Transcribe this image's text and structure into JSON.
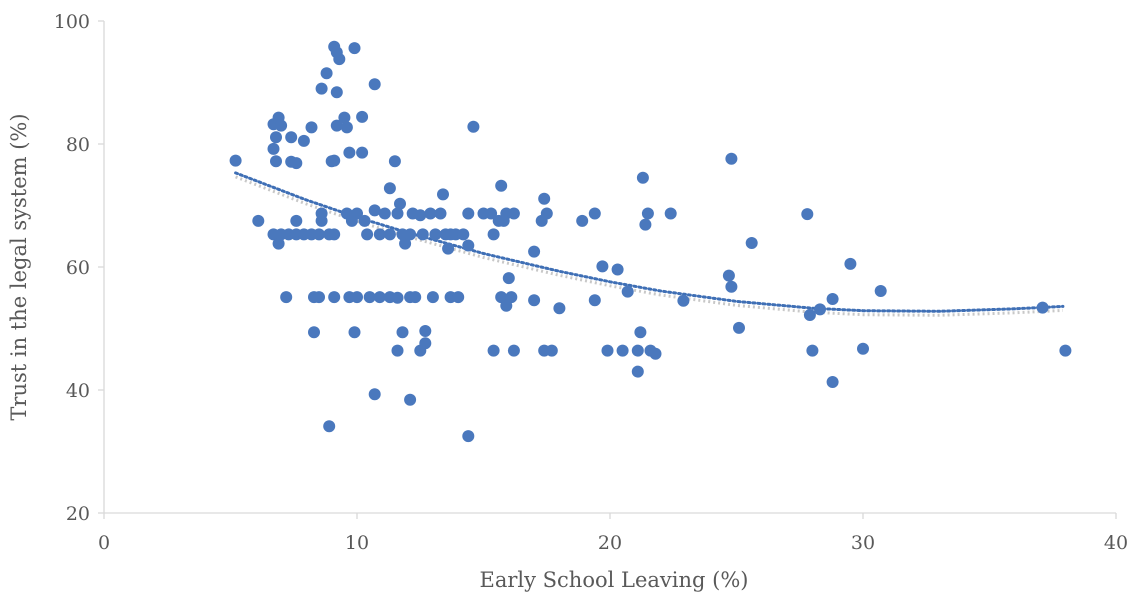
{
  "chart_data": {
    "type": "scatter",
    "title": "",
    "xlabel": "Early School Leaving (%)",
    "ylabel": "Trust in the legal system (%)",
    "xlim": [
      0,
      40
    ],
    "ylim": [
      20,
      100
    ],
    "x_ticks": [
      "0",
      "10",
      "20",
      "30",
      "40"
    ],
    "y_ticks": [
      "20",
      "40",
      "60",
      "80",
      "100"
    ],
    "grid": false,
    "legend": "none",
    "colors": {
      "points": "#4a78bd",
      "trend": "#3f6fb5",
      "trend_shadow": "#c8c8c8",
      "axis": "#d9d9d9",
      "text": "#595959"
    },
    "trendline": {
      "type": "polynomial",
      "x": [
        5.2,
        8,
        10,
        12,
        15,
        18,
        20,
        22,
        25,
        28,
        30,
        33,
        36,
        37.9
      ],
      "y": [
        75.3,
        70.9,
        68.1,
        65.6,
        62.2,
        59.3,
        57.6,
        56.1,
        54.4,
        53.3,
        52.9,
        52.8,
        53.2,
        53.6
      ]
    },
    "points": [
      [
        5.2,
        77.3
      ],
      [
        6.1,
        67.5
      ],
      [
        6.7,
        83.2
      ],
      [
        6.8,
        81.1
      ],
      [
        6.9,
        84.3
      ],
      [
        7.0,
        83.0
      ],
      [
        6.7,
        79.2
      ],
      [
        6.8,
        77.2
      ],
      [
        7.4,
        81.1
      ],
      [
        7.4,
        77.1
      ],
      [
        7.6,
        76.9
      ],
      [
        7.9,
        80.5
      ],
      [
        8.2,
        82.7
      ],
      [
        7.6,
        67.5
      ],
      [
        6.7,
        65.3
      ],
      [
        6.9,
        63.8
      ],
      [
        7.0,
        65.3
      ],
      [
        7.3,
        65.3
      ],
      [
        7.6,
        65.3
      ],
      [
        7.9,
        65.3
      ],
      [
        8.2,
        65.3
      ],
      [
        8.5,
        65.3
      ],
      [
        8.6,
        67.5
      ],
      [
        8.6,
        68.7
      ],
      [
        8.6,
        89.0
      ],
      [
        8.8,
        91.5
      ],
      [
        9.0,
        77.2
      ],
      [
        9.1,
        77.3
      ],
      [
        9.1,
        95.8
      ],
      [
        9.2,
        94.9
      ],
      [
        9.3,
        93.8
      ],
      [
        9.2,
        88.4
      ],
      [
        9.2,
        83.0
      ],
      [
        9.5,
        84.3
      ],
      [
        9.6,
        82.7
      ],
      [
        9.7,
        78.6
      ],
      [
        9.9,
        95.6
      ],
      [
        10.2,
        78.6
      ],
      [
        10.2,
        84.4
      ],
      [
        10.7,
        89.7
      ],
      [
        9.1,
        65.3
      ],
      [
        8.9,
        65.3
      ],
      [
        9.6,
        68.7
      ],
      [
        9.8,
        67.5
      ],
      [
        10.0,
        68.7
      ],
      [
        10.3,
        67.5
      ],
      [
        10.4,
        65.3
      ],
      [
        10.7,
        69.2
      ],
      [
        10.9,
        65.3
      ],
      [
        11.1,
        68.7
      ],
      [
        11.3,
        72.8
      ],
      [
        11.3,
        65.3
      ],
      [
        11.5,
        77.2
      ],
      [
        11.6,
        68.7
      ],
      [
        11.7,
        70.3
      ],
      [
        11.8,
        65.3
      ],
      [
        11.9,
        63.8
      ],
      [
        12.1,
        65.3
      ],
      [
        12.2,
        68.7
      ],
      [
        12.5,
        68.4
      ],
      [
        12.6,
        65.3
      ],
      [
        12.9,
        68.7
      ],
      [
        13.1,
        65.3
      ],
      [
        13.3,
        68.7
      ],
      [
        13.4,
        71.8
      ],
      [
        13.5,
        65.3
      ],
      [
        13.6,
        63.0
      ],
      [
        13.7,
        65.3
      ],
      [
        13.9,
        65.3
      ],
      [
        14.2,
        65.3
      ],
      [
        14.4,
        63.5
      ],
      [
        14.4,
        68.7
      ],
      [
        14.6,
        82.8
      ],
      [
        15.0,
        68.7
      ],
      [
        15.3,
        68.7
      ],
      [
        15.4,
        65.3
      ],
      [
        15.6,
        67.5
      ],
      [
        15.7,
        73.2
      ],
      [
        15.9,
        68.7
      ],
      [
        15.8,
        67.5
      ],
      [
        16.2,
        68.7
      ],
      [
        17.0,
        62.5
      ],
      [
        17.3,
        67.5
      ],
      [
        17.4,
        71.1
      ],
      [
        17.5,
        68.7
      ],
      [
        18.9,
        67.5
      ],
      [
        19.4,
        68.7
      ],
      [
        19.7,
        60.1
      ],
      [
        20.3,
        59.6
      ],
      [
        20.7,
        56.0
      ],
      [
        21.3,
        74.5
      ],
      [
        21.5,
        68.7
      ],
      [
        21.4,
        66.9
      ],
      [
        22.4,
        68.7
      ],
      [
        24.8,
        77.6
      ],
      [
        24.7,
        58.6
      ],
      [
        24.8,
        56.8
      ],
      [
        25.6,
        63.9
      ],
      [
        27.8,
        68.6
      ],
      [
        29.5,
        60.5
      ],
      [
        30.7,
        56.1
      ],
      [
        7.2,
        55.1
      ],
      [
        8.3,
        55.1
      ],
      [
        8.5,
        55.1
      ],
      [
        9.1,
        55.1
      ],
      [
        9.7,
        55.1
      ],
      [
        10.0,
        55.1
      ],
      [
        10.5,
        55.1
      ],
      [
        10.9,
        55.1
      ],
      [
        11.3,
        55.1
      ],
      [
        11.6,
        55.0
      ],
      [
        12.1,
        55.1
      ],
      [
        12.3,
        55.1
      ],
      [
        13.0,
        55.1
      ],
      [
        13.7,
        55.1
      ],
      [
        14.0,
        55.1
      ],
      [
        15.7,
        55.1
      ],
      [
        16.1,
        55.1
      ],
      [
        15.9,
        53.7
      ],
      [
        16.0,
        58.2
      ],
      [
        17.0,
        54.6
      ],
      [
        18.0,
        53.3
      ],
      [
        19.4,
        54.6
      ],
      [
        22.9,
        54.5
      ],
      [
        25.1,
        50.1
      ],
      [
        27.9,
        52.2
      ],
      [
        28.3,
        53.1
      ],
      [
        28.8,
        54.8
      ],
      [
        37.1,
        53.4
      ],
      [
        8.3,
        49.4
      ],
      [
        9.9,
        49.4
      ],
      [
        11.8,
        49.4
      ],
      [
        12.7,
        49.6
      ],
      [
        12.7,
        47.6
      ],
      [
        11.6,
        46.4
      ],
      [
        12.5,
        46.4
      ],
      [
        15.4,
        46.4
      ],
      [
        16.2,
        46.4
      ],
      [
        17.4,
        46.4
      ],
      [
        17.7,
        46.4
      ],
      [
        19.9,
        46.4
      ],
      [
        20.5,
        46.4
      ],
      [
        21.1,
        46.4
      ],
      [
        21.2,
        49.4
      ],
      [
        21.6,
        46.4
      ],
      [
        21.8,
        45.9
      ],
      [
        28.0,
        46.4
      ],
      [
        30.0,
        46.7
      ],
      [
        38.0,
        46.4
      ],
      [
        21.1,
        43.0
      ],
      [
        28.8,
        41.3
      ],
      [
        10.7,
        39.3
      ],
      [
        12.1,
        38.4
      ],
      [
        8.9,
        34.1
      ],
      [
        14.4,
        32.5
      ]
    ]
  }
}
